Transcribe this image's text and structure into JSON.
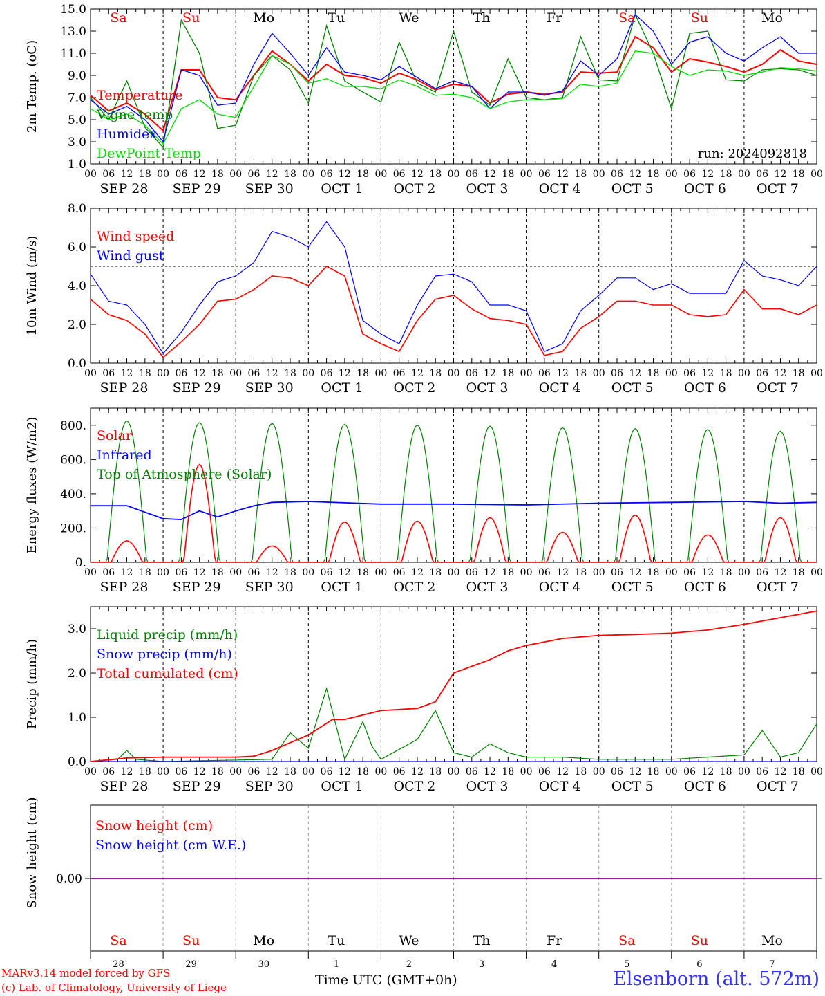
{
  "credits": {
    "line1": "MARv3.14 model forced by GFS",
    "line2": "(c) Lab. of Climatology, University of Liege"
  },
  "station": "Elsenborn (alt. 572m)",
  "x_axis_title": "Time UTC (GMT+0h)",
  "run_label": "run: 2024092818",
  "day_abbrevs": [
    "Sa",
    "Su",
    "Mo",
    "Tu",
    "We",
    "Th",
    "Fr",
    "Sa",
    "Su",
    "Mo"
  ],
  "weekend_flags": [
    true,
    true,
    false,
    false,
    false,
    false,
    false,
    true,
    true,
    false
  ],
  "date_labels": [
    "SEP 28",
    "SEP 29",
    "SEP 30",
    "OCT  1",
    "OCT  2",
    "OCT  3",
    "OCT  4",
    "OCT  5",
    "OCT  6",
    "OCT  7"
  ],
  "day_numbers": [
    "28",
    "29",
    "30",
    "1",
    "2",
    "3",
    "4",
    "5",
    "6",
    "7"
  ],
  "hour_ticks": [
    "00",
    "06",
    "12",
    "18"
  ],
  "hour_end": "00",
  "colors": {
    "red": "#ff0000",
    "blue": "#0000ff",
    "green": "#008000",
    "lightgreen": "#00dd00",
    "purple": "#800080"
  },
  "chart_data": [
    {
      "type": "line",
      "ylabel": "2m Temp. (oC)",
      "ylim": [
        1,
        15
      ],
      "yticks": [
        "1.0",
        "3.0",
        "5.0",
        "7.0",
        "9.0",
        "11.0",
        "13.0",
        "15.0"
      ],
      "x_unit": "hours since 00 UTC SEP 28",
      "x": [
        0,
        6,
        12,
        18,
        24,
        30,
        36,
        42,
        48,
        54,
        60,
        66,
        72,
        78,
        84,
        90,
        96,
        102,
        108,
        114,
        120,
        126,
        132,
        138,
        144,
        150,
        156,
        162,
        168,
        174,
        180,
        186,
        192,
        198,
        204,
        210,
        216,
        222,
        228,
        234,
        240
      ],
      "series": [
        {
          "name": "Temperature",
          "color": "red",
          "values": [
            7.2,
            5.8,
            6.5,
            5.5,
            4.0,
            9.5,
            9.5,
            7.0,
            6.8,
            9.0,
            11.2,
            10.0,
            8.5,
            10.0,
            9.0,
            8.8,
            8.3,
            9.2,
            8.6,
            7.7,
            8.2,
            8.0,
            6.5,
            7.3,
            7.5,
            7.3,
            7.5,
            9.3,
            9.2,
            9.3,
            12.5,
            11.5,
            9.3,
            10.5,
            10.2,
            9.8,
            9.3,
            10.0,
            11.3,
            10.3,
            10.0
          ]
        },
        {
          "name": "Vigne temp",
          "color": "green",
          "values": [
            7.0,
            5.0,
            8.5,
            4.3,
            2.5,
            14.0,
            11.0,
            4.2,
            4.5,
            9.0,
            10.8,
            9.5,
            6.5,
            13.5,
            8.5,
            7.5,
            6.6,
            12.0,
            8.3,
            7.5,
            13.0,
            7.5,
            6.3,
            10.5,
            7.0,
            6.8,
            7.0,
            12.5,
            8.6,
            8.5,
            14.5,
            11.0,
            6.0,
            12.8,
            13.0,
            8.6,
            8.5,
            9.5,
            9.6,
            9.5,
            9.0
          ]
        },
        {
          "name": "Humidex",
          "color": "blue",
          "values": [
            6.8,
            5.5,
            6.2,
            5.0,
            3.0,
            9.5,
            9.0,
            6.3,
            6.5,
            10.0,
            12.8,
            11.0,
            9.0,
            11.5,
            9.3,
            9.0,
            8.6,
            9.8,
            8.8,
            7.8,
            8.5,
            8.0,
            6.0,
            7.5,
            7.5,
            7.2,
            7.6,
            10.3,
            9.0,
            10.5,
            14.5,
            13.0,
            10.0,
            12.0,
            12.5,
            11.0,
            10.3,
            11.5,
            12.5,
            11.0,
            11.0
          ]
        },
        {
          "name": "DewPoint Temp",
          "color": "lightgreen",
          "values": [
            6.0,
            5.0,
            5.5,
            4.5,
            2.8,
            6.0,
            6.8,
            5.5,
            5.2,
            8.0,
            10.8,
            10.0,
            8.3,
            8.7,
            8.0,
            8.0,
            7.8,
            8.6,
            8.0,
            7.2,
            7.3,
            7.0,
            6.0,
            6.6,
            6.8,
            6.8,
            6.9,
            8.2,
            8.0,
            8.3,
            11.2,
            11.0,
            9.8,
            9.0,
            9.5,
            9.4,
            9.0,
            9.3,
            9.7,
            9.6,
            9.4
          ]
        }
      ]
    },
    {
      "type": "line",
      "ylabel": "10m Wind (m/s)",
      "ylim": [
        0,
        8
      ],
      "yticks": [
        "0.0",
        "2.0",
        "4.0",
        "6.0",
        "8.0"
      ],
      "reference_line": 5,
      "x": [
        0,
        6,
        12,
        18,
        24,
        30,
        36,
        42,
        48,
        54,
        60,
        66,
        72,
        78,
        84,
        90,
        96,
        102,
        108,
        114,
        120,
        126,
        132,
        138,
        144,
        150,
        156,
        162,
        168,
        174,
        180,
        186,
        192,
        198,
        204,
        210,
        216,
        222,
        228,
        234,
        240
      ],
      "series": [
        {
          "name": "Wind speed",
          "color": "red",
          "values": [
            3.3,
            2.5,
            2.2,
            1.5,
            0.3,
            1.1,
            2.0,
            3.2,
            3.3,
            3.8,
            4.5,
            4.4,
            4.0,
            5.0,
            4.5,
            1.5,
            1.0,
            0.6,
            2.2,
            3.3,
            3.5,
            2.8,
            2.3,
            2.2,
            2.0,
            0.4,
            0.6,
            1.8,
            2.4,
            3.2,
            3.2,
            3.0,
            3.0,
            2.5,
            2.4,
            2.5,
            3.8,
            2.8,
            2.8,
            2.5,
            3.0
          ]
        },
        {
          "name": "Wind gust",
          "color": "blue",
          "values": [
            4.6,
            3.2,
            3.0,
            2.0,
            0.5,
            1.6,
            3.0,
            4.2,
            4.5,
            5.2,
            6.8,
            6.5,
            6.0,
            7.3,
            6.0,
            2.2,
            1.5,
            1.0,
            3.0,
            4.5,
            4.6,
            4.2,
            3.0,
            3.0,
            2.7,
            0.6,
            1.0,
            2.7,
            3.5,
            4.4,
            4.4,
            3.8,
            4.1,
            3.6,
            3.6,
            3.6,
            5.3,
            4.5,
            4.3,
            4.0,
            5.0
          ]
        }
      ]
    },
    {
      "type": "line",
      "ylabel": "Energy fluxes (W/m2)",
      "ylim": [
        0,
        900
      ],
      "yticks": [
        "0.",
        "200.",
        "400.",
        "600.",
        "800."
      ],
      "noon_peaks_x": [
        12,
        36,
        60,
        84,
        108,
        132,
        156,
        180,
        204,
        228
      ],
      "series": [
        {
          "name": "Solar",
          "color": "red",
          "daily_peaks": [
            125,
            570,
            95,
            235,
            240,
            260,
            175,
            275,
            160,
            260
          ]
        },
        {
          "name": "Infrared",
          "color": "blue",
          "x": [
            0,
            12,
            24,
            30,
            36,
            42,
            48,
            54,
            60,
            72,
            96,
            120,
            144,
            168,
            192,
            216,
            228,
            240
          ],
          "values": [
            330,
            330,
            255,
            250,
            300,
            265,
            300,
            330,
            350,
            355,
            340,
            340,
            335,
            345,
            350,
            355,
            345,
            350
          ]
        },
        {
          "name": "Top of Atmosphere (Solar)",
          "color": "green",
          "daily_peaks": [
            825,
            815,
            810,
            805,
            800,
            795,
            785,
            780,
            775,
            765
          ]
        }
      ]
    },
    {
      "type": "line",
      "ylabel": "Precip (mm/h)",
      "ylim": [
        0,
        3.5
      ],
      "yticks": [
        "0.0",
        "1.0",
        "2.0",
        "3.0"
      ],
      "series": [
        {
          "name": "Liquid precip (mm/h)",
          "color": "green",
          "x": [
            0,
            9,
            12,
            15,
            24,
            60,
            66,
            72,
            78,
            84,
            90,
            93,
            96,
            108,
            114,
            120,
            126,
            132,
            138,
            144,
            156,
            168,
            180,
            192,
            216,
            222,
            228,
            234,
            240
          ],
          "values": [
            0,
            0.05,
            0.25,
            0.05,
            0,
            0.05,
            0.65,
            0.3,
            1.65,
            0.05,
            0.9,
            0.35,
            0.05,
            0.5,
            1.15,
            0.2,
            0.1,
            0.4,
            0.2,
            0.1,
            0.1,
            0.05,
            0.05,
            0.05,
            0.15,
            0.7,
            0.1,
            0.2,
            0.85
          ]
        },
        {
          "name": "Snow precip (mm/h)",
          "color": "blue",
          "x": [
            0,
            240
          ],
          "values": [
            0,
            0
          ]
        },
        {
          "name": "Total cumulated (cm)",
          "color": "red",
          "x": [
            0,
            12,
            24,
            48,
            54,
            60,
            72,
            80,
            84,
            96,
            108,
            114,
            120,
            126,
            132,
            138,
            144,
            156,
            168,
            180,
            192,
            204,
            216,
            228,
            240
          ],
          "values": [
            0,
            0.08,
            0.1,
            0.1,
            0.12,
            0.25,
            0.6,
            0.95,
            0.95,
            1.15,
            1.2,
            1.35,
            2.0,
            2.15,
            2.3,
            2.5,
            2.62,
            2.78,
            2.85,
            2.87,
            2.9,
            2.97,
            3.1,
            3.25,
            3.4
          ]
        }
      ]
    },
    {
      "type": "line",
      "ylabel": "Snow height (cm)",
      "ytick": "0.00",
      "series": [
        {
          "name": "Snow height (cm)",
          "color": "red",
          "values": [
            0,
            0
          ]
        },
        {
          "name": "Snow height (cm W.E.)",
          "color": "blue",
          "values": [
            0,
            0
          ]
        }
      ]
    }
  ]
}
